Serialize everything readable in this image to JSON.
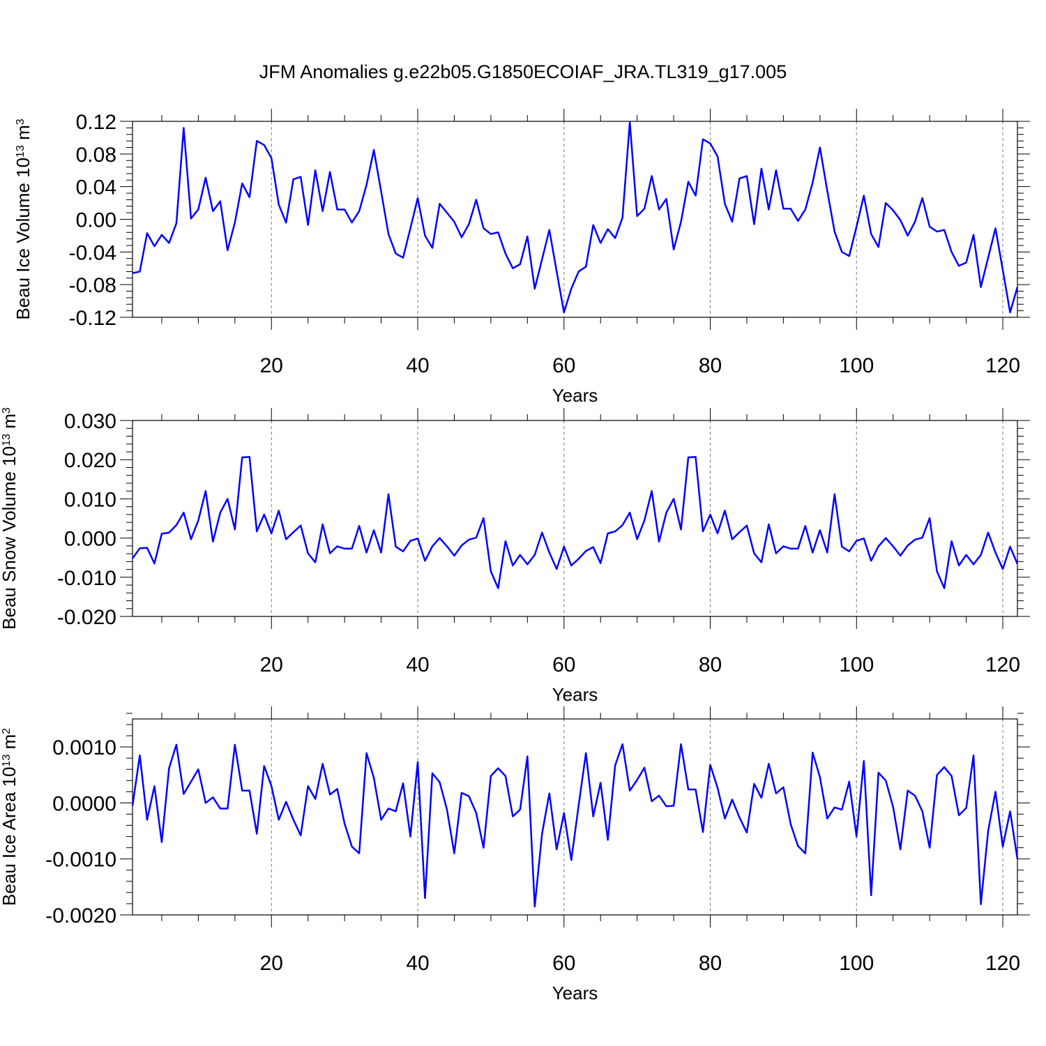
{
  "figure": {
    "title": "JFM Anomalies g.e22b05.G1850ECOIAF_JRA.TL319_g17.005"
  },
  "colors": {
    "line": "#0000ff",
    "axis": "#000000",
    "grid": "#777777"
  },
  "chart_data": [
    {
      "type": "line",
      "xlabel": "Years",
      "ylabel": "Beau Ice Volume 10",
      "ylabel_sup": "13",
      "ylabel_unit": " m",
      "ylabel_unit_sup": "3",
      "xlim": [
        1,
        122
      ],
      "ylim": [
        -0.12,
        0.12
      ],
      "xticks": [
        20,
        40,
        60,
        80,
        100,
        120
      ],
      "xtick_labels": [
        "20",
        "40",
        "60",
        "80",
        "100",
        "120"
      ],
      "yticks": [
        -0.12,
        -0.08,
        -0.04,
        0.0,
        0.04,
        0.08,
        0.12
      ],
      "ytick_labels": [
        "-0.12",
        "-0.08",
        "-0.04",
        "0.00",
        "0.04",
        "0.08",
        "0.12"
      ],
      "x_start": 1,
      "series": [
        {
          "name": "Beau Ice Volume",
          "values": [
            -0.066,
            -0.064,
            -0.017,
            -0.033,
            -0.019,
            -0.029,
            -0.005,
            0.112,
            0.001,
            0.012,
            0.051,
            0.01,
            0.022,
            -0.038,
            -0.004,
            0.044,
            0.027,
            0.096,
            0.091,
            0.075,
            0.018,
            -0.004,
            0.049,
            0.052,
            -0.007,
            0.06,
            0.01,
            0.058,
            0.012,
            0.012,
            -0.004,
            0.01,
            0.042,
            0.085,
            0.034,
            -0.018,
            -0.042,
            -0.047,
            -0.011,
            0.026,
            -0.02,
            -0.035,
            0.019,
            0.008,
            -0.003,
            -0.022,
            -0.006,
            0.024,
            -0.011,
            -0.018,
            -0.016,
            -0.042,
            -0.06,
            -0.055,
            -0.021,
            -0.085,
            -0.049,
            -0.013,
            -0.064,
            -0.114,
            -0.085,
            -0.064,
            -0.058,
            -0.007,
            -0.029,
            -0.012,
            -0.023,
            0.002,
            0.119,
            0.004,
            0.013,
            0.053,
            0.012,
            0.025,
            -0.037,
            -0.003,
            0.046,
            0.029,
            0.098,
            0.093,
            0.077,
            0.019,
            -0.003,
            0.05,
            0.053,
            -0.006,
            0.062,
            0.012,
            0.06,
            0.013,
            0.013,
            -0.002,
            0.012,
            0.045,
            0.088,
            0.035,
            -0.015,
            -0.04,
            -0.045,
            -0.009,
            0.029,
            -0.018,
            -0.034,
            0.02,
            0.011,
            -0.001,
            -0.02,
            -0.003,
            0.026,
            -0.009,
            -0.015,
            -0.013,
            -0.04,
            -0.057,
            -0.053,
            -0.019,
            -0.083,
            -0.047,
            -0.011,
            -0.062,
            -0.114,
            -0.083
          ]
        }
      ]
    },
    {
      "type": "line",
      "xlabel": "Years",
      "ylabel": "Beau Snow Volume 10",
      "ylabel_sup": "13",
      "ylabel_unit": " m",
      "ylabel_unit_sup": "3",
      "xlim": [
        1,
        122
      ],
      "ylim": [
        -0.02,
        0.03
      ],
      "xticks": [
        20,
        40,
        60,
        80,
        100,
        120
      ],
      "xtick_labels": [
        "20",
        "40",
        "60",
        "80",
        "100",
        "120"
      ],
      "yticks": [
        -0.02,
        -0.01,
        0.0,
        0.01,
        0.02,
        0.03
      ],
      "ytick_labels": [
        "-0.020",
        "-0.010",
        "0.000",
        "0.010",
        "0.020",
        "0.030"
      ],
      "x_start": 1,
      "series": [
        {
          "name": "Beau Snow Volume",
          "values": [
            -0.0052,
            -0.0026,
            -0.0025,
            -0.0065,
            0.0011,
            0.0014,
            0.0033,
            0.0065,
            -0.0003,
            0.0045,
            0.012,
            -0.0009,
            0.0065,
            0.01,
            0.0022,
            0.0206,
            0.0207,
            0.0017,
            0.006,
            0.0012,
            0.007,
            -0.0003,
            0.0015,
            0.0032,
            -0.0039,
            -0.0062,
            0.0035,
            -0.0039,
            -0.0021,
            -0.0027,
            -0.0027,
            0.0031,
            -0.0037,
            0.002,
            -0.0037,
            0.0112,
            -0.0022,
            -0.0034,
            -0.0007,
            -0.0001,
            -0.0058,
            -0.0021,
            0.0,
            -0.0021,
            -0.0045,
            -0.0019,
            -0.0004,
            0.0001,
            0.0051,
            -0.0085,
            -0.0128,
            -0.0008,
            -0.007,
            -0.0043,
            -0.0067,
            -0.0043,
            0.0014,
            -0.0037,
            -0.0079,
            -0.0022,
            -0.007,
            -0.0053,
            -0.0033,
            -0.0023,
            -0.0064,
            0.0012,
            0.0017,
            0.0033,
            0.0065,
            -0.0003,
            0.0045,
            0.012,
            -0.0009,
            0.0065,
            0.01,
            0.0022,
            0.0206,
            0.0207,
            0.0017,
            0.006,
            0.0012,
            0.007,
            -0.0003,
            0.0015,
            0.0032,
            -0.0039,
            -0.0062,
            0.0035,
            -0.0039,
            -0.0021,
            -0.0027,
            -0.0027,
            0.0031,
            -0.0037,
            0.002,
            -0.0037,
            0.0112,
            -0.0022,
            -0.0034,
            -0.0007,
            -0.0001,
            -0.0058,
            -0.0021,
            0.0,
            -0.0021,
            -0.0045,
            -0.0019,
            -0.0004,
            0.0001,
            0.0051,
            -0.0085,
            -0.0128,
            -0.0008,
            -0.007,
            -0.0043,
            -0.0067,
            -0.0043,
            0.0014,
            -0.0037,
            -0.0079,
            -0.0022,
            -0.0066
          ]
        }
      ]
    },
    {
      "type": "line",
      "xlabel": "Years",
      "ylabel": "Beau Ice Area 10",
      "ylabel_sup": "13",
      "ylabel_unit": " m",
      "ylabel_unit_sup": "2",
      "xlim": [
        1,
        122
      ],
      "ylim": [
        -0.002,
        0.0015
      ],
      "xticks": [
        20,
        40,
        60,
        80,
        100,
        120
      ],
      "xtick_labels": [
        "20",
        "40",
        "60",
        "80",
        "100",
        "120"
      ],
      "yticks": [
        -0.002,
        -0.001,
        0.0,
        0.001
      ],
      "ytick_labels": [
        "-0.0020",
        "-0.0010",
        "0.0000",
        "0.0010"
      ],
      "x_start": 1,
      "series": [
        {
          "name": "Beau Ice Area",
          "values": [
            -5e-05,
            0.00085,
            -0.0003,
            0.0003,
            -0.0007,
            0.00062,
            0.00104,
            0.00016,
            0.00038,
            0.0006,
            -0.0,
            0.0001,
            -0.0001,
            -0.0001,
            0.00104,
            0.00022,
            0.00022,
            -0.00055,
            0.00066,
            0.0003,
            -0.0003,
            2e-05,
            -0.0003,
            -0.00058,
            0.0003,
            7e-05,
            0.0007,
            0.00015,
            0.00025,
            -0.00037,
            -0.00078,
            -0.0009,
            0.00089,
            0.00045,
            -0.0003,
            -0.0001,
            -0.00015,
            0.00035,
            -0.0006,
            0.00073,
            -0.0017,
            0.00053,
            0.00037,
            -0.00012,
            -0.0009,
            0.00018,
            0.00012,
            -0.00018,
            -0.0008,
            0.00048,
            0.00062,
            0.00048,
            -0.00024,
            -0.00012,
            0.00083,
            -0.00185,
            -0.00055,
            0.00017,
            -0.00083,
            -0.00018,
            -0.00102,
            -5e-05,
            0.00089,
            -0.00024,
            0.00036,
            -0.00066,
            0.00067,
            0.00105,
            0.00022,
            0.00041,
            0.00063,
            3e-05,
            0.00013,
            -6e-05,
            -5e-05,
            0.00105,
            0.00024,
            0.00024,
            -0.00052,
            0.00068,
            0.00027,
            -0.00028,
            6e-05,
            -0.00026,
            -0.00053,
            0.00034,
            9e-05,
            0.0007,
            0.00017,
            0.00028,
            -0.00038,
            -0.00077,
            -0.0009,
            0.0009,
            0.00046,
            -0.00028,
            -8e-05,
            -0.00012,
            0.00038,
            -0.0006,
            0.00075,
            -0.00165,
            0.00054,
            0.0004,
            -7e-05,
            -0.00083,
            0.00022,
            0.00013,
            -0.00015,
            -0.0008,
            0.0005,
            0.00064,
            0.00048,
            -0.00022,
            -9e-05,
            0.00085,
            -0.00181,
            -0.0005,
            0.0002,
            -0.00078,
            -0.00015,
            -0.001
          ]
        }
      ]
    }
  ]
}
